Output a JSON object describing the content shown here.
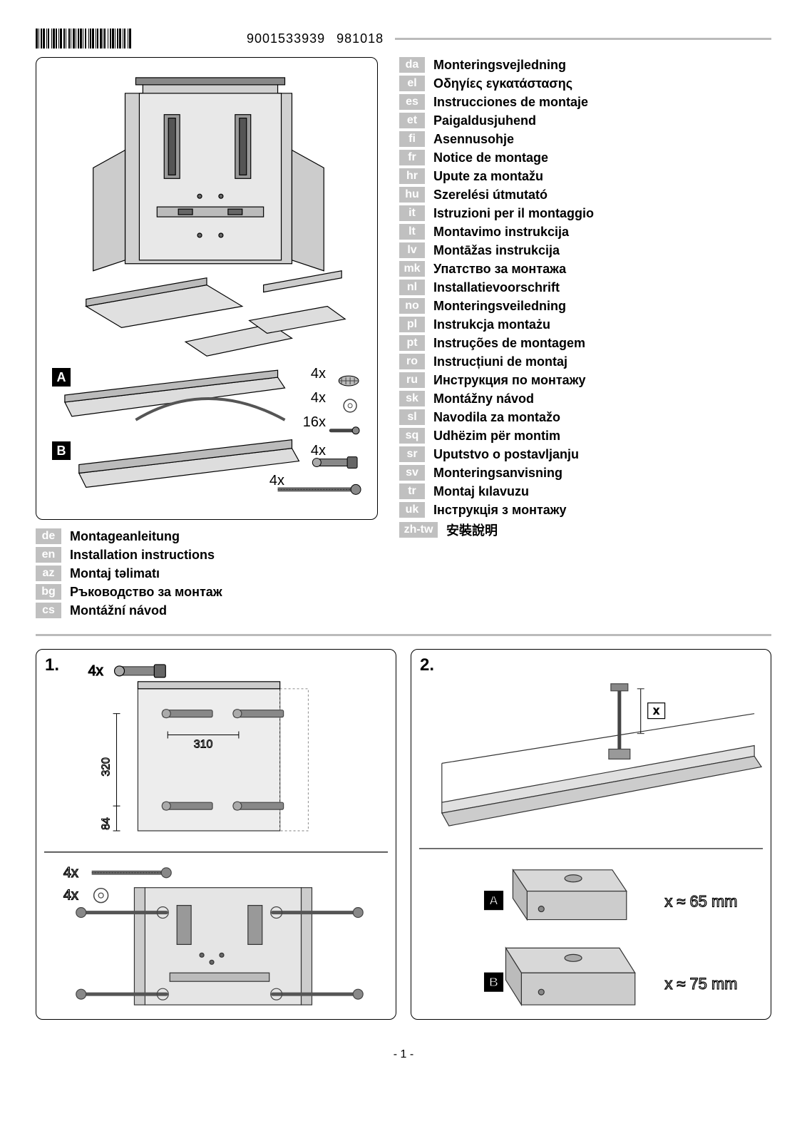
{
  "header": {
    "doc_number": "9001533939",
    "doc_rev": "981018"
  },
  "parts": {
    "qty1": "4x",
    "qty2": "4x",
    "qty3": "16x",
    "qty4": "4x",
    "qty5": "4x",
    "label_a": "A",
    "label_b": "B"
  },
  "languages_left": [
    {
      "code": "de",
      "label": "Montageanleitung"
    },
    {
      "code": "en",
      "label": "Installation instructions"
    },
    {
      "code": "az",
      "label": "Montaj təlimatı"
    },
    {
      "code": "bg",
      "label": "Ръководство за монтаж"
    },
    {
      "code": "cs",
      "label": "Montážní návod"
    }
  ],
  "languages_right": [
    {
      "code": "da",
      "label": "Monteringsvejledning"
    },
    {
      "code": "el",
      "label": "Οδηγίες εγκατάστασης"
    },
    {
      "code": "es",
      "label": "Instrucciones de montaje"
    },
    {
      "code": "et",
      "label": "Paigaldusjuhend"
    },
    {
      "code": "fi",
      "label": "Asennusohje"
    },
    {
      "code": "fr",
      "label": "Notice de montage"
    },
    {
      "code": "hr",
      "label": "Upute za montažu"
    },
    {
      "code": "hu",
      "label": "Szerelési útmutató"
    },
    {
      "code": "it",
      "label": "Istruzioni per il montaggio"
    },
    {
      "code": "lt",
      "label": "Montavimo instrukcija"
    },
    {
      "code": "lv",
      "label": "Montāžas instrukcija"
    },
    {
      "code": "mk",
      "label": "Упатство за монтажа"
    },
    {
      "code": "nl",
      "label": "Installatievoorschrift"
    },
    {
      "code": "no",
      "label": "Monteringsveiledning"
    },
    {
      "code": "pl",
      "label": "Instrukcja montażu"
    },
    {
      "code": "pt",
      "label": "Instruções de montagem"
    },
    {
      "code": "ro",
      "label": "Instrucțiuni de montaj"
    },
    {
      "code": "ru",
      "label": "Инструкция по монтажу"
    },
    {
      "code": "sk",
      "label": "Montážny návod"
    },
    {
      "code": "sl",
      "label": "Navodila za montažo"
    },
    {
      "code": "sq",
      "label": "Udhëzim për montim"
    },
    {
      "code": "sr",
      "label": "Uputstvo o postavljanju"
    },
    {
      "code": "sv",
      "label": "Monteringsanvisning"
    },
    {
      "code": "tr",
      "label": "Montaj kılavuzu"
    },
    {
      "code": "uk",
      "label": "Інструкція з монтажу"
    },
    {
      "code": "zh-tw",
      "label": "安裝說明",
      "wide": true
    }
  ],
  "step1": {
    "num": "1.",
    "bolt_qty": "4x",
    "dim_v1": "320",
    "dim_v2": "84",
    "dim_h": "310",
    "screw_qty": "4x",
    "washer_qty": "4x"
  },
  "step2": {
    "num": "2.",
    "var": "x",
    "a_label": "A",
    "a_val": "x ≈ 65 mm",
    "b_label": "B",
    "b_val": "x ≈ 75 mm"
  },
  "footer": "- 1 -"
}
